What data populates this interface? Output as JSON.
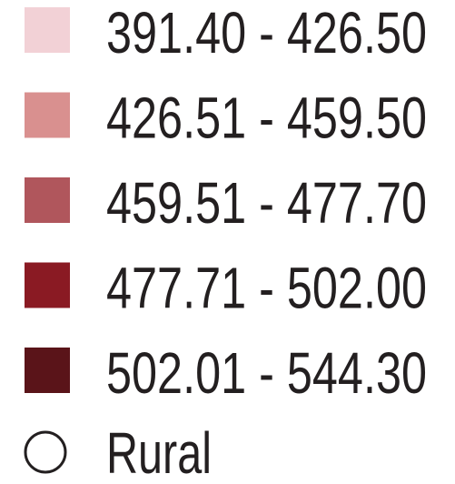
{
  "legend": {
    "items": [
      {
        "label": "391.40 - 426.50",
        "color": "#f2d1d6"
      },
      {
        "label": "426.51 - 459.50",
        "color": "#d9908f"
      },
      {
        "label": "459.51 - 477.70",
        "color": "#b0565c"
      },
      {
        "label": "477.71 - 502.00",
        "color": "#8a1a23"
      },
      {
        "label": "502.01 - 544.30",
        "color": "#5a1419"
      }
    ],
    "rural": {
      "label": "Rural"
    }
  }
}
